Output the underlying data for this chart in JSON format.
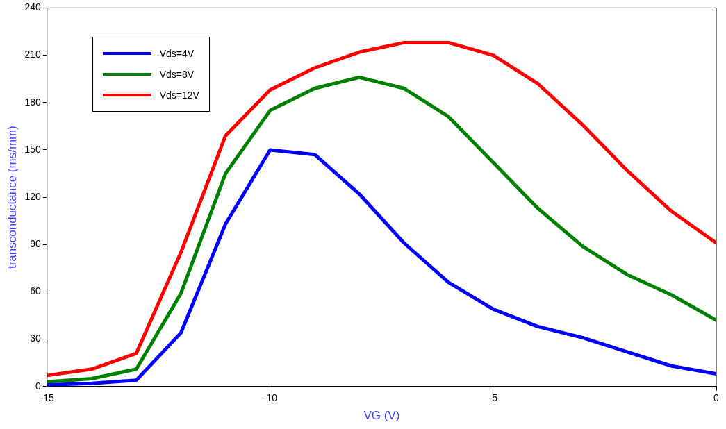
{
  "chart_data": {
    "type": "line",
    "xlabel": "VG (V)",
    "ylabel": "transconductance (ms/mm)",
    "x": [
      -15,
      -14,
      -13,
      -12,
      -11,
      -10,
      -9,
      -8,
      -7,
      -6,
      -5,
      -4,
      -3,
      -2,
      -1,
      0
    ],
    "series": [
      {
        "name": "Vds=4V",
        "color": "#0000ff",
        "values": [
          1,
          2,
          4,
          34,
          103,
          150,
          147,
          122,
          91,
          66,
          49,
          38,
          31,
          22,
          13,
          8
        ]
      },
      {
        "name": "Vds=8V",
        "color": "#008000",
        "values": [
          3,
          5,
          11,
          59,
          135,
          175,
          189,
          196,
          189,
          171,
          142,
          113,
          89,
          71,
          58,
          42
        ]
      },
      {
        "name": "Vds=12V",
        "color": "#ff0000",
        "values": [
          7,
          11,
          21,
          85,
          159,
          188,
          202,
          212,
          218,
          218,
          210,
          192,
          166,
          137,
          111,
          91
        ]
      }
    ],
    "xlim": [
      -15,
      0
    ],
    "xticks": [
      -15,
      -10,
      -5,
      0
    ],
    "ylim": [
      0,
      240
    ],
    "yticks": [
      0,
      30,
      60,
      90,
      120,
      150,
      180,
      210,
      240
    ],
    "grid": false,
    "legend": "top left",
    "marker": "none",
    "line_style": "solid"
  }
}
